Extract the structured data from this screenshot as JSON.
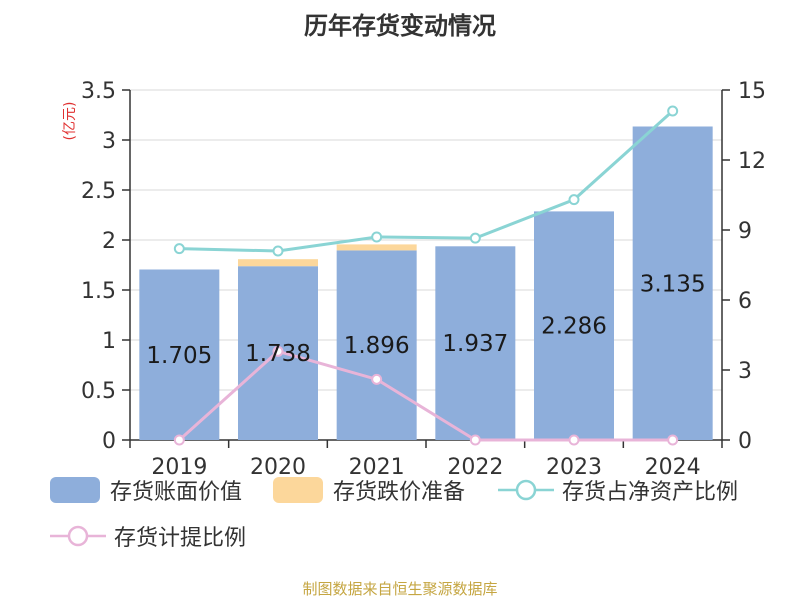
{
  "title": "历年存货变动情况",
  "left_axis_unit": "(亿元)",
  "source": "制图数据来自恒生聚源数据库",
  "colors": {
    "book_value": "#8eaedb",
    "impairment": "#fcd79b",
    "net_asset_ratio": "#8ad4d4",
    "provision_ratio": "#e8b4d8",
    "axis": "#333333",
    "grid": "#d9d9d9",
    "unit": "#e03030"
  },
  "legend": [
    {
      "key": "book_value",
      "label": "存货账面价值",
      "kind": "bar"
    },
    {
      "key": "impairment",
      "label": "存货跌价准备",
      "kind": "bar"
    },
    {
      "key": "net_asset_ratio",
      "label": "存货占净资产比例",
      "kind": "line"
    },
    {
      "key": "provision_ratio",
      "label": "存货计提比例",
      "kind": "line"
    }
  ],
  "chart_data": {
    "type": "bar",
    "categories": [
      "2019",
      "2020",
      "2021",
      "2022",
      "2023",
      "2024"
    ],
    "series": [
      {
        "name": "存货账面价值",
        "axis": "left",
        "kind": "bar",
        "values": [
          1.705,
          1.738,
          1.896,
          1.937,
          2.286,
          3.135
        ],
        "labels": [
          "1.705",
          "1.738",
          "1.896",
          "1.937",
          "2.286",
          "3.135"
        ]
      },
      {
        "name": "存货跌价准备",
        "axis": "left",
        "kind": "bar-stack",
        "values": [
          0,
          0.07,
          0.06,
          0,
          0,
          0
        ]
      },
      {
        "name": "存货占净资产比例",
        "axis": "right",
        "kind": "line",
        "values": [
          8.2,
          8.1,
          8.7,
          8.65,
          10.3,
          14.1
        ]
      },
      {
        "name": "存货计提比例",
        "axis": "right",
        "kind": "line",
        "values": [
          0,
          3.8,
          2.6,
          0,
          0,
          0
        ]
      }
    ],
    "y_left": {
      "min": 0,
      "max": 3.5,
      "ticks": [
        "0",
        "0.5",
        "1",
        "1.5",
        "2",
        "2.5",
        "3",
        "3.5"
      ]
    },
    "y_right": {
      "min": 0,
      "max": 15,
      "ticks": [
        "0",
        "3",
        "6",
        "9",
        "12",
        "15"
      ]
    },
    "grid": true,
    "legend_position": "bottom"
  }
}
